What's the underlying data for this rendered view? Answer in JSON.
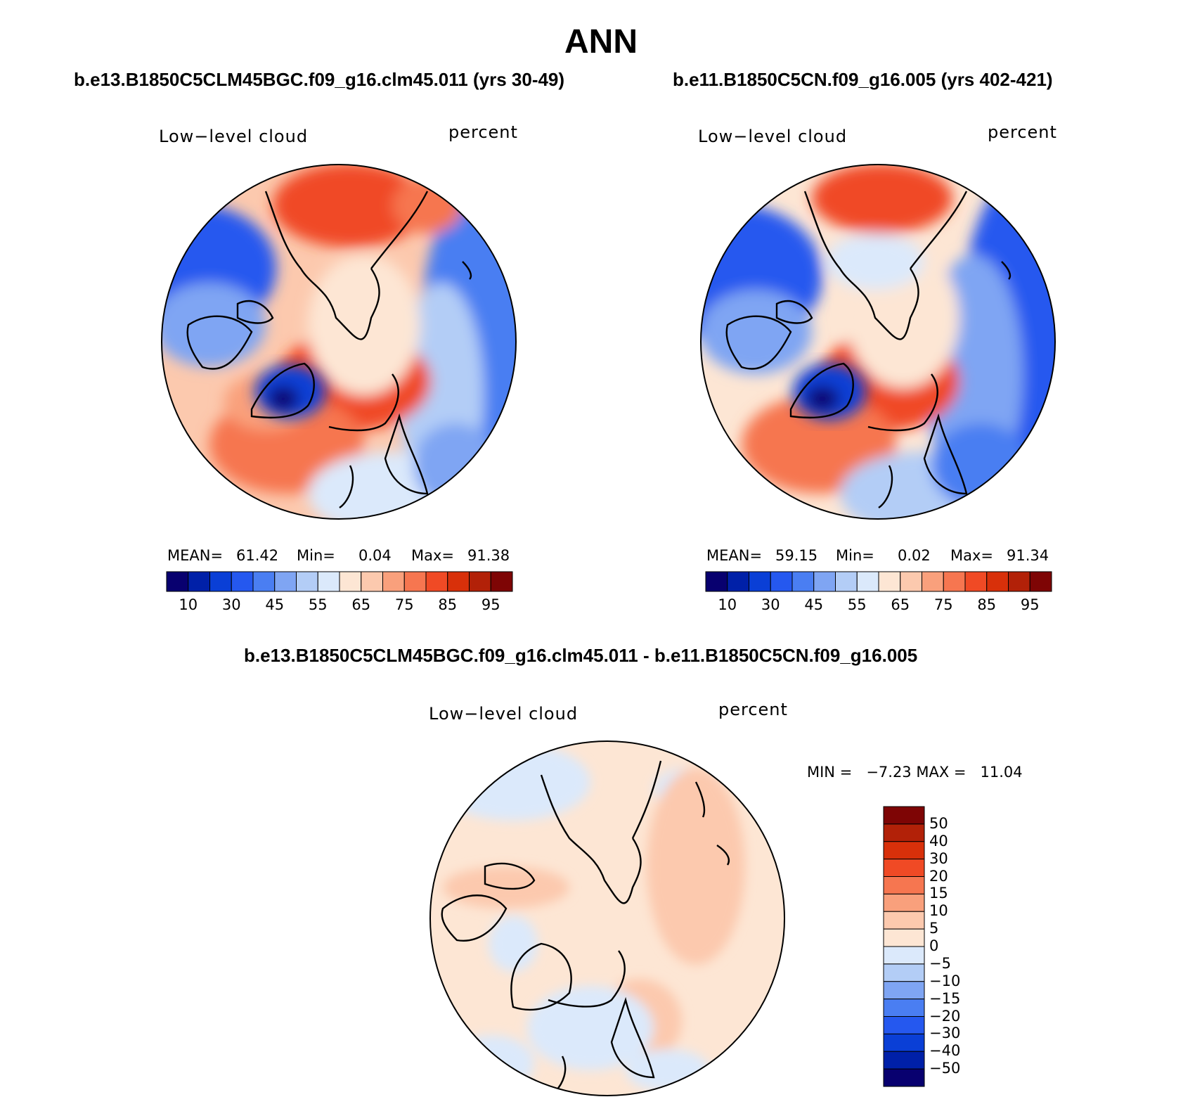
{
  "main_title": "ANN",
  "panels": [
    {
      "case_title": "b.e13.B1850C5CLM45BGC.f09_g16.clm45.011 (yrs 30-49)",
      "left_label": "Low−level cloud",
      "right_label": "percent",
      "stats": {
        "mean_label": "MEAN=",
        "mean": "61.42",
        "min_label": "Min=",
        "min": "0.04",
        "max_label": "Max=",
        "max": "91.38"
      }
    },
    {
      "case_title": "b.e11.B1850C5CN.f09_g16.005 (yrs 402-421)",
      "left_label": "Low−level cloud",
      "right_label": "percent",
      "stats": {
        "mean_label": "MEAN=",
        "mean": "59.15",
        "min_label": "Min=",
        "min": "0.02",
        "max_label": "Max=",
        "max": "91.34"
      }
    }
  ],
  "diff_panel": {
    "title": "b.e13.B1850C5CLM45BGC.f09_g16.clm45.011 - b.e11.B1850C5CN.f09_g16.005",
    "left_label": "Low−level cloud",
    "right_label": "percent",
    "minmax": "MIN =   −7.23 MAX =   11.04"
  },
  "colorbar": {
    "colors": [
      "#08006f",
      "#0020a8",
      "#0a3fd6",
      "#2558ef",
      "#4a7ef2",
      "#7fa5f3",
      "#b3cdf6",
      "#dbe9fb",
      "#fde6d4",
      "#fcc9ae",
      "#f9a07c",
      "#f67650",
      "#f04a25",
      "#d8300a",
      "#b22108",
      "#7e0505"
    ],
    "tick_labels": [
      "10",
      "30",
      "45",
      "55",
      "65",
      "75",
      "85",
      "95"
    ]
  },
  "diff_colorbar": {
    "colors_top_to_bottom": [
      "#7e0505",
      "#b22108",
      "#d8300a",
      "#f04a25",
      "#f67650",
      "#f9a07c",
      "#fcc9ae",
      "#fde6d4",
      "#dbe9fb",
      "#b3cdf6",
      "#7fa5f3",
      "#4a7ef2",
      "#2558ef",
      "#0a3fd6",
      "#0020a8",
      "#08006f"
    ],
    "tick_labels_top_to_bottom": [
      "50",
      "40",
      "30",
      "20",
      "15",
      "10",
      "5",
      "0",
      "−5",
      "−10",
      "−15",
      "−20",
      "−30",
      "−40",
      "−50"
    ]
  }
}
